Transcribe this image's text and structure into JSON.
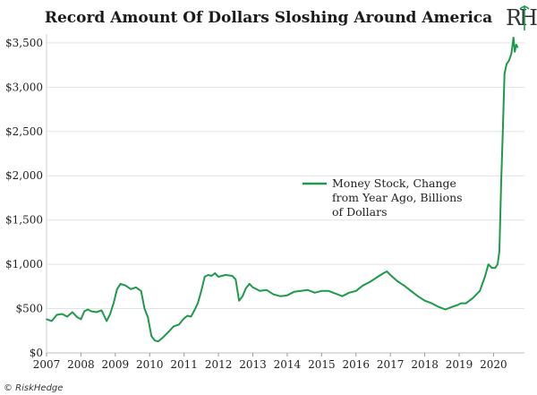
{
  "chart_data": {
    "type": "line",
    "title": "Record Amount Of Dollars Sloshing Around America",
    "ylim": [
      0,
      3600
    ],
    "xlim": [
      2007,
      2020.9
    ],
    "yticks": [
      0,
      500,
      1000,
      1500,
      2000,
      2500,
      3000,
      3500
    ],
    "ytick_labels": [
      "$0",
      "$500",
      "$1,000",
      "$1,500",
      "$2,000",
      "$2,500",
      "$3,000",
      "$3,500"
    ],
    "xticks": [
      2007,
      2008,
      2009,
      2010,
      2011,
      2012,
      2013,
      2014,
      2015,
      2016,
      2017,
      2018,
      2019,
      2020
    ],
    "xtick_labels": [
      "2007",
      "2008",
      "2009",
      "2010",
      "2011",
      "2012",
      "2013",
      "2014",
      "2015",
      "2016",
      "2017",
      "2018",
      "2019",
      "2020"
    ],
    "legend": "center-right",
    "color": "#1e9a4a",
    "series": [
      {
        "name": "Money Stock, Change from Year Ago, Billions of Dollars",
        "x": [
          2007.0,
          2007.15,
          2007.3,
          2007.45,
          2007.6,
          2007.75,
          2007.9,
          2008.0,
          2008.1,
          2008.2,
          2008.3,
          2008.45,
          2008.6,
          2008.75,
          2008.85,
          2008.95,
          2009.05,
          2009.15,
          2009.3,
          2009.45,
          2009.6,
          2009.75,
          2009.85,
          2009.95,
          2010.0,
          2010.05,
          2010.15,
          2010.25,
          2010.4,
          2010.55,
          2010.7,
          2010.85,
          2011.0,
          2011.1,
          2011.2,
          2011.3,
          2011.4,
          2011.5,
          2011.6,
          2011.7,
          2011.8,
          2011.9,
          2012.0,
          2012.2,
          2012.4,
          2012.5,
          2012.6,
          2012.7,
          2012.8,
          2012.9,
          2013.0,
          2013.2,
          2013.4,
          2013.6,
          2013.8,
          2014.0,
          2014.2,
          2014.4,
          2014.6,
          2014.8,
          2015.0,
          2015.2,
          2015.4,
          2015.6,
          2015.8,
          2016.0,
          2016.2,
          2016.4,
          2016.6,
          2016.8,
          2016.9,
          2017.0,
          2017.2,
          2017.4,
          2017.6,
          2017.8,
          2018.0,
          2018.2,
          2018.4,
          2018.6,
          2018.8,
          2018.95,
          2019.05,
          2019.2,
          2019.4,
          2019.6,
          2019.75,
          2019.85,
          2019.95,
          2020.05,
          2020.12,
          2020.17,
          2020.22,
          2020.27,
          2020.32,
          2020.38,
          2020.45,
          2020.52,
          2020.58,
          2020.62,
          2020.66,
          2020.7
        ],
        "values": [
          380,
          360,
          430,
          440,
          410,
          460,
          400,
          380,
          470,
          490,
          470,
          460,
          480,
          360,
          440,
          560,
          720,
          780,
          760,
          720,
          740,
          700,
          500,
          400,
          290,
          190,
          140,
          130,
          180,
          240,
          300,
          320,
          390,
          420,
          410,
          480,
          560,
          700,
          860,
          880,
          870,
          900,
          860,
          880,
          870,
          830,
          590,
          640,
          730,
          780,
          740,
          700,
          710,
          660,
          640,
          650,
          690,
          700,
          710,
          680,
          700,
          700,
          670,
          640,
          680,
          700,
          760,
          800,
          850,
          900,
          920,
          880,
          810,
          760,
          700,
          640,
          590,
          560,
          520,
          490,
          520,
          540,
          560,
          560,
          620,
          700,
          860,
          1000,
          960,
          960,
          1000,
          1150,
          1900,
          2500,
          3150,
          3260,
          3300,
          3380,
          3560,
          3400,
          3480,
          3450
        ]
      }
    ]
  },
  "logo": {
    "letters": "RH"
  },
  "credit": "© RiskHedge"
}
